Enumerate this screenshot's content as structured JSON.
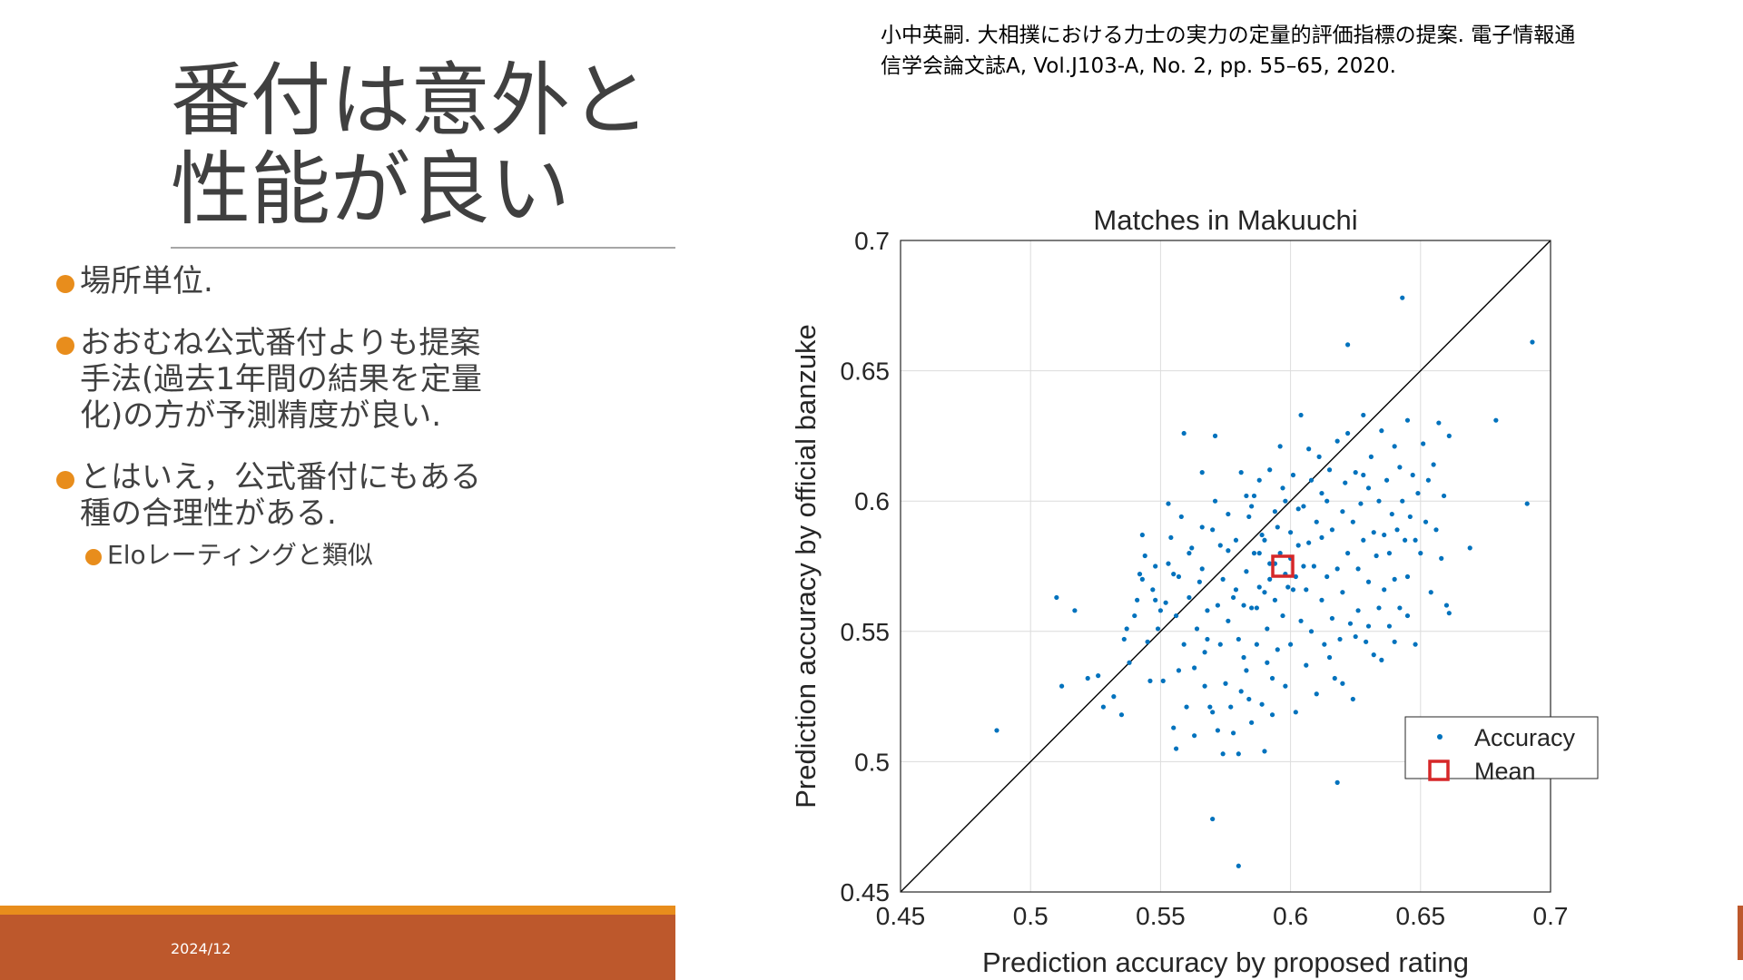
{
  "slide": {
    "title_lines": [
      "番付は意外と",
      "性能が良い"
    ],
    "bullets": [
      {
        "lines": [
          "場所単位."
        ]
      },
      {
        "lines": [
          "おおむね公式番付よりも提案",
          "手法(過去1年間の結果を定量",
          "化)の方が予測精度が良い."
        ]
      },
      {
        "lines": [
          "とはいえ，公式番付にもある",
          "種の合理性がある."
        ]
      }
    ],
    "sub_bullet": "Eloレーティングと類似",
    "date": "2024/12",
    "citation_lines": [
      "小中英嗣. 大相撲における力士の実力の定量的評価指標の提案. 電子情報通",
      "信学会論文誌A, Vol.J103-A, No. 2, pp. 55–65, 2020."
    ]
  },
  "colors": {
    "accent_orange": "#e88d1c",
    "footer_red": "#bd582c",
    "point_blue": "#0072bd",
    "mean_red": "#d62728"
  },
  "chart_data": {
    "type": "scatter",
    "title": "Matches in Makuuchi",
    "xlabel": "Prediction accuracy by proposed rating",
    "ylabel": "Prediction accuracy by official banzuke",
    "xlim": [
      0.45,
      0.7
    ],
    "ylim": [
      0.45,
      0.7
    ],
    "xticks": [
      "0.45",
      "0.5",
      "0.55",
      "0.6",
      "0.65",
      "0.7"
    ],
    "yticks": [
      "0.45",
      "0.5",
      "0.55",
      "0.6",
      "0.65",
      "0.7"
    ],
    "grid": true,
    "reference_line": "y = x",
    "legend": {
      "position": "bottom-right",
      "entries": [
        "Accuracy",
        "Mean"
      ]
    },
    "mean": {
      "name": "Mean",
      "x": 0.597,
      "y": 0.575
    },
    "series": [
      {
        "name": "Accuracy",
        "points": [
          [
            0.487,
            0.512
          ],
          [
            0.51,
            0.563
          ],
          [
            0.512,
            0.529
          ],
          [
            0.517,
            0.558
          ],
          [
            0.522,
            0.532
          ],
          [
            0.526,
            0.533
          ],
          [
            0.528,
            0.521
          ],
          [
            0.532,
            0.525
          ],
          [
            0.535,
            0.518
          ],
          [
            0.536,
            0.547
          ],
          [
            0.537,
            0.551
          ],
          [
            0.538,
            0.538
          ],
          [
            0.54,
            0.556
          ],
          [
            0.541,
            0.562
          ],
          [
            0.542,
            0.572
          ],
          [
            0.543,
            0.587
          ],
          [
            0.544,
            0.579
          ],
          [
            0.545,
            0.546
          ],
          [
            0.546,
            0.531
          ],
          [
            0.547,
            0.566
          ],
          [
            0.548,
            0.575
          ],
          [
            0.549,
            0.551
          ],
          [
            0.55,
            0.558
          ],
          [
            0.551,
            0.531
          ],
          [
            0.552,
            0.561
          ],
          [
            0.553,
            0.576
          ],
          [
            0.553,
            0.599
          ],
          [
            0.554,
            0.586
          ],
          [
            0.555,
            0.513
          ],
          [
            0.556,
            0.505
          ],
          [
            0.556,
            0.556
          ],
          [
            0.557,
            0.571
          ],
          [
            0.558,
            0.594
          ],
          [
            0.559,
            0.626
          ],
          [
            0.559,
            0.545
          ],
          [
            0.56,
            0.521
          ],
          [
            0.561,
            0.563
          ],
          [
            0.562,
            0.582
          ],
          [
            0.563,
            0.536
          ],
          [
            0.564,
            0.551
          ],
          [
            0.565,
            0.569
          ],
          [
            0.566,
            0.574
          ],
          [
            0.566,
            0.611
          ],
          [
            0.567,
            0.529
          ],
          [
            0.568,
            0.558
          ],
          [
            0.568,
            0.547
          ],
          [
            0.569,
            0.521
          ],
          [
            0.57,
            0.519
          ],
          [
            0.57,
            0.589
          ],
          [
            0.571,
            0.625
          ],
          [
            0.572,
            0.512
          ],
          [
            0.572,
            0.56
          ],
          [
            0.573,
            0.545
          ],
          [
            0.574,
            0.503
          ],
          [
            0.574,
            0.57
          ],
          [
            0.575,
            0.53
          ],
          [
            0.576,
            0.554
          ],
          [
            0.576,
            0.581
          ],
          [
            0.577,
            0.521
          ],
          [
            0.578,
            0.563
          ],
          [
            0.578,
            0.511
          ],
          [
            0.579,
            0.585
          ],
          [
            0.58,
            0.503
          ],
          [
            0.58,
            0.547
          ],
          [
            0.581,
            0.527
          ],
          [
            0.581,
            0.611
          ],
          [
            0.582,
            0.56
          ],
          [
            0.583,
            0.573
          ],
          [
            0.583,
            0.535
          ],
          [
            0.584,
            0.594
          ],
          [
            0.585,
            0.515
          ],
          [
            0.585,
            0.559
          ],
          [
            0.586,
            0.602
          ],
          [
            0.586,
            0.58
          ],
          [
            0.587,
            0.545
          ],
          [
            0.588,
            0.567
          ],
          [
            0.588,
            0.608
          ],
          [
            0.589,
            0.522
          ],
          [
            0.589,
            0.587
          ],
          [
            0.59,
            0.504
          ],
          [
            0.59,
            0.565
          ],
          [
            0.591,
            0.551
          ],
          [
            0.592,
            0.612
          ],
          [
            0.592,
            0.576
          ],
          [
            0.593,
            0.532
          ],
          [
            0.594,
            0.596
          ],
          [
            0.594,
            0.562
          ],
          [
            0.595,
            0.543
          ],
          [
            0.596,
            0.58
          ],
          [
            0.596,
            0.621
          ],
          [
            0.597,
            0.556
          ],
          [
            0.598,
            0.529
          ],
          [
            0.598,
            0.6
          ],
          [
            0.599,
            0.567
          ],
          [
            0.6,
            0.588
          ],
          [
            0.6,
            0.545
          ],
          [
            0.601,
            0.61
          ],
          [
            0.602,
            0.571
          ],
          [
            0.602,
            0.519
          ],
          [
            0.603,
            0.583
          ],
          [
            0.604,
            0.554
          ],
          [
            0.604,
            0.633
          ],
          [
            0.605,
            0.598
          ],
          [
            0.606,
            0.566
          ],
          [
            0.606,
            0.537
          ],
          [
            0.607,
            0.584
          ],
          [
            0.608,
            0.608
          ],
          [
            0.608,
            0.55
          ],
          [
            0.609,
            0.575
          ],
          [
            0.61,
            0.592
          ],
          [
            0.61,
            0.526
          ],
          [
            0.611,
            0.617
          ],
          [
            0.612,
            0.562
          ],
          [
            0.612,
            0.586
          ],
          [
            0.613,
            0.545
          ],
          [
            0.614,
            0.6
          ],
          [
            0.614,
            0.571
          ],
          [
            0.615,
            0.612
          ],
          [
            0.616,
            0.555
          ],
          [
            0.616,
            0.589
          ],
          [
            0.617,
            0.532
          ],
          [
            0.618,
            0.574
          ],
          [
            0.618,
            0.623
          ],
          [
            0.619,
            0.547
          ],
          [
            0.62,
            0.596
          ],
          [
            0.62,
            0.565
          ],
          [
            0.621,
            0.607
          ],
          [
            0.622,
            0.58
          ],
          [
            0.622,
            0.626
          ],
          [
            0.623,
            0.553
          ],
          [
            0.624,
            0.592
          ],
          [
            0.624,
            0.524
          ],
          [
            0.625,
            0.611
          ],
          [
            0.626,
            0.574
          ],
          [
            0.626,
            0.558
          ],
          [
            0.627,
            0.599
          ],
          [
            0.628,
            0.585
          ],
          [
            0.628,
            0.633
          ],
          [
            0.629,
            0.546
          ],
          [
            0.63,
            0.605
          ],
          [
            0.63,
            0.569
          ],
          [
            0.631,
            0.617
          ],
          [
            0.632,
            0.588
          ],
          [
            0.632,
            0.541
          ],
          [
            0.633,
            0.579
          ],
          [
            0.634,
            0.6
          ],
          [
            0.634,
            0.559
          ],
          [
            0.635,
            0.627
          ],
          [
            0.636,
            0.587
          ],
          [
            0.636,
            0.566
          ],
          [
            0.637,
            0.608
          ],
          [
            0.638,
            0.58
          ],
          [
            0.638,
            0.552
          ],
          [
            0.639,
            0.595
          ],
          [
            0.64,
            0.621
          ],
          [
            0.64,
            0.57
          ],
          [
            0.641,
            0.589
          ],
          [
            0.642,
            0.613
          ],
          [
            0.642,
            0.559
          ],
          [
            0.643,
            0.6
          ],
          [
            0.644,
            0.585
          ],
          [
            0.645,
            0.631
          ],
          [
            0.645,
            0.571
          ],
          [
            0.646,
            0.594
          ],
          [
            0.647,
            0.61
          ],
          [
            0.648,
            0.585
          ],
          [
            0.648,
            0.545
          ],
          [
            0.649,
            0.603
          ],
          [
            0.65,
            0.58
          ],
          [
            0.651,
            0.622
          ],
          [
            0.652,
            0.592
          ],
          [
            0.653,
            0.608
          ],
          [
            0.654,
            0.565
          ],
          [
            0.655,
            0.614
          ],
          [
            0.656,
            0.589
          ],
          [
            0.657,
            0.63
          ],
          [
            0.658,
            0.578
          ],
          [
            0.659,
            0.602
          ],
          [
            0.66,
            0.56
          ],
          [
            0.661,
            0.625
          ],
          [
            0.618,
            0.492
          ],
          [
            0.58,
            0.46
          ],
          [
            0.57,
            0.478
          ],
          [
            0.643,
            0.678
          ],
          [
            0.622,
            0.66
          ],
          [
            0.679,
            0.631
          ],
          [
            0.669,
            0.582
          ],
          [
            0.691,
            0.599
          ],
          [
            0.693,
            0.661
          ],
          [
            0.661,
            0.557
          ],
          [
            0.585,
            0.598
          ],
          [
            0.59,
            0.585
          ],
          [
            0.595,
            0.59
          ],
          [
            0.592,
            0.57
          ],
          [
            0.588,
            0.58
          ],
          [
            0.598,
            0.572
          ],
          [
            0.594,
            0.576
          ],
          [
            0.601,
            0.566
          ],
          [
            0.6,
            0.578
          ],
          [
            0.605,
            0.575
          ],
          [
            0.557,
            0.535
          ],
          [
            0.563,
            0.51
          ],
          [
            0.567,
            0.542
          ],
          [
            0.573,
            0.583
          ],
          [
            0.579,
            0.566
          ],
          [
            0.582,
            0.54
          ],
          [
            0.584,
            0.524
          ],
          [
            0.587,
            0.559
          ],
          [
            0.591,
            0.538
          ],
          [
            0.593,
            0.518
          ],
          [
            0.615,
            0.54
          ],
          [
            0.62,
            0.53
          ],
          [
            0.625,
            0.548
          ],
          [
            0.63,
            0.552
          ],
          [
            0.635,
            0.539
          ],
          [
            0.64,
            0.546
          ],
          [
            0.645,
            0.556
          ],
          [
            0.628,
            0.61
          ],
          [
            0.612,
            0.603
          ],
          [
            0.607,
            0.62
          ],
          [
            0.603,
            0.597
          ],
          [
            0.597,
            0.605
          ],
          [
            0.583,
            0.602
          ],
          [
            0.576,
            0.595
          ],
          [
            0.571,
            0.6
          ],
          [
            0.566,
            0.59
          ],
          [
            0.561,
            0.58
          ],
          [
            0.555,
            0.572
          ],
          [
            0.548,
            0.562
          ],
          [
            0.543,
            0.57
          ]
        ]
      }
    ]
  }
}
